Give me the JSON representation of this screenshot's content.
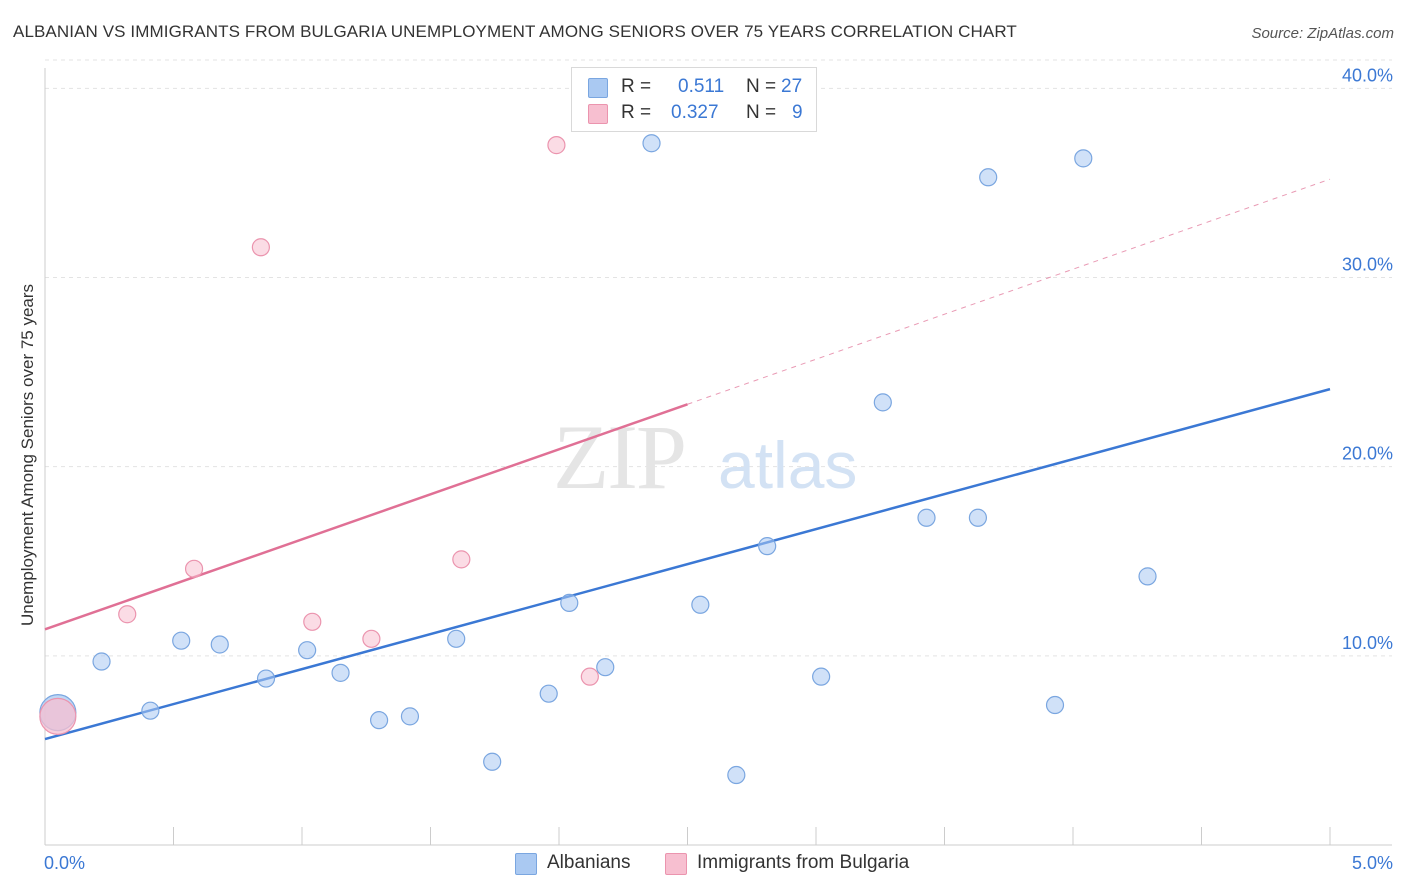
{
  "chart_data": {
    "type": "scatter",
    "title": "ALBANIAN VS IMMIGRANTS FROM BULGARIA UNEMPLOYMENT AMONG SENIORS OVER 75 YEARS CORRELATION CHART",
    "source": "Source: ZipAtlas.com",
    "xlabel": "",
    "ylabel": "Unemployment Among Seniors over 75 years",
    "xlim": [
      0,
      5
    ],
    "ylim": [
      0,
      41.5
    ],
    "x_tick_labels": [
      "0.0%",
      "5.0%"
    ],
    "y_ticks": [
      10,
      20,
      30,
      40
    ],
    "y_tick_labels": [
      "10.0%",
      "20.0%",
      "30.0%",
      "40.0%"
    ],
    "watermark": "ZIPatlas",
    "series": [
      {
        "name": "Albanians",
        "color": "#aac9f2",
        "stroke": "#7aa6e0",
        "line_color": "#3b78d4",
        "R": "0.511",
        "N": "27",
        "trend": {
          "x0": 0.0,
          "y0": 5.6,
          "x1": 5.0,
          "y1": 24.1,
          "dashed_from": null
        },
        "points": [
          {
            "x": 0.05,
            "y": 7.0,
            "big": true
          },
          {
            "x": 0.22,
            "y": 9.7
          },
          {
            "x": 0.41,
            "y": 7.1
          },
          {
            "x": 0.53,
            "y": 10.8
          },
          {
            "x": 0.68,
            "y": 10.6
          },
          {
            "x": 0.86,
            "y": 8.8
          },
          {
            "x": 1.02,
            "y": 10.3
          },
          {
            "x": 1.15,
            "y": 9.1
          },
          {
            "x": 1.3,
            "y": 6.6
          },
          {
            "x": 1.42,
            "y": 6.8
          },
          {
            "x": 1.6,
            "y": 10.9
          },
          {
            "x": 1.74,
            "y": 4.4
          },
          {
            "x": 1.96,
            "y": 8.0
          },
          {
            "x": 2.04,
            "y": 12.8
          },
          {
            "x": 2.18,
            "y": 9.4
          },
          {
            "x": 2.36,
            "y": 37.1
          },
          {
            "x": 2.55,
            "y": 12.7
          },
          {
            "x": 2.69,
            "y": 3.7
          },
          {
            "x": 2.81,
            "y": 15.8
          },
          {
            "x": 3.02,
            "y": 8.9
          },
          {
            "x": 3.26,
            "y": 23.4
          },
          {
            "x": 3.43,
            "y": 17.3
          },
          {
            "x": 3.63,
            "y": 17.3
          },
          {
            "x": 3.67,
            "y": 35.3
          },
          {
            "x": 3.93,
            "y": 7.4
          },
          {
            "x": 4.04,
            "y": 36.3
          },
          {
            "x": 4.29,
            "y": 14.2
          }
        ]
      },
      {
        "name": "Immigrants from Bulgaria",
        "color": "#f7bfd0",
        "stroke": "#eb94ae",
        "line_color": "#e07095",
        "R": "0.327",
        "N": "9",
        "trend": {
          "x0": 0.0,
          "y0": 11.4,
          "x1": 5.0,
          "y1": 35.2,
          "dashed_from": 2.5
        },
        "points": [
          {
            "x": 0.05,
            "y": 6.8,
            "big": true
          },
          {
            "x": 0.32,
            "y": 12.2
          },
          {
            "x": 0.58,
            "y": 14.6
          },
          {
            "x": 0.84,
            "y": 31.6
          },
          {
            "x": 1.04,
            "y": 11.8
          },
          {
            "x": 1.27,
            "y": 10.9
          },
          {
            "x": 1.62,
            "y": 15.1
          },
          {
            "x": 1.99,
            "y": 37.0
          },
          {
            "x": 2.12,
            "y": 8.9
          }
        ]
      }
    ]
  }
}
